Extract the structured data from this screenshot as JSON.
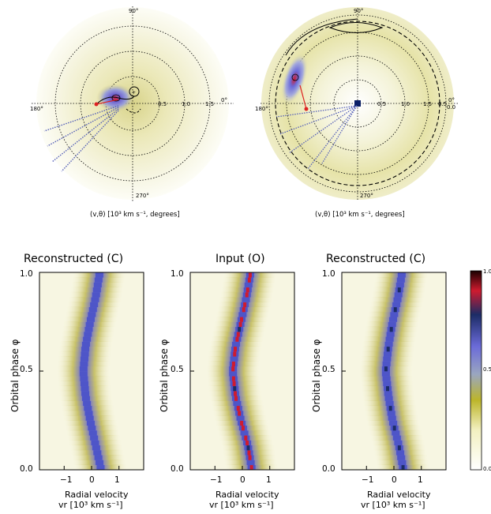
{
  "doppler_maps": {
    "left": {
      "caption": "(v,θ) [10³ km s⁻¹, degrees]",
      "angle_labels": {
        "top": "90°",
        "right": "0°",
        "left": "180°",
        "bottom": "270°"
      },
      "ring_labels": [
        "0.5",
        "1.0",
        "1.5"
      ]
    },
    "right": {
      "caption": "(v,θ) [10³ km s⁻¹, degrees]",
      "angle_labels": {
        "top": "90°",
        "right": "0°",
        "left": "180°",
        "bottom": "270°"
      },
      "ring_labels": [
        "0.5",
        "1.0",
        "1.5",
        "0.5",
        "0.0"
      ]
    }
  },
  "trailed": {
    "panels": [
      {
        "title": "Reconstructed (C)"
      },
      {
        "title": "Input (O)"
      },
      {
        "title": "Reconstructed (C)"
      }
    ],
    "ylabel": "Orbital phase φ",
    "xlabel_line1": "Radial velocity",
    "xlabel_line2": "vr [10³ km s⁻¹]",
    "yticks": [
      "0.0",
      "0.5",
      "1.0"
    ],
    "xticks": [
      "−1",
      "0",
      "1"
    ]
  },
  "colorbar": {
    "ticks": [
      "0.0",
      "0.5",
      "1.0"
    ],
    "colors": [
      "#ffffff",
      "#f2f0c0",
      "#bcb52a",
      "#8fa0c4",
      "#6b6bd9",
      "#1c2c66",
      "#cf1b2f",
      "#000000"
    ]
  },
  "chart_data": [
    {
      "type": "heatmap",
      "title": "Reconstructed (C)",
      "xlabel": "Radial velocity vr [10³ km s⁻¹]",
      "ylabel": "Orbital phase φ",
      "xlim": [
        -1.9,
        1.9
      ],
      "ylim": [
        0.0,
        1.0
      ],
      "phase": [
        0.0,
        0.125,
        0.25,
        0.375,
        0.5,
        0.625,
        0.75,
        0.875,
        1.0
      ],
      "peak_velocity": [
        0.35,
        0.15,
        -0.05,
        -0.22,
        -0.3,
        -0.22,
        -0.05,
        0.15,
        0.3
      ],
      "peak_intensity": 0.7
    },
    {
      "type": "heatmap",
      "title": "Input (O)",
      "xlabel": "Radial velocity vr [10³ km s⁻¹]",
      "ylabel": "Orbital phase φ",
      "xlim": [
        -1.9,
        1.9
      ],
      "ylim": [
        0.0,
        1.0
      ],
      "phase": [
        0.0,
        0.125,
        0.25,
        0.375,
        0.5,
        0.625,
        0.75,
        0.875,
        1.0
      ],
      "peak_velocity": [
        0.35,
        0.2,
        -0.05,
        -0.25,
        -0.35,
        -0.25,
        -0.05,
        0.15,
        0.3
      ],
      "peak_intensity": 1.0
    },
    {
      "type": "heatmap",
      "title": "Reconstructed (C)",
      "xlabel": "Radial velocity vr [10³ km s⁻¹]",
      "ylabel": "Orbital phase φ",
      "xlim": [
        -1.9,
        1.9
      ],
      "ylim": [
        0.0,
        1.0
      ],
      "phase": [
        0.0,
        0.125,
        0.25,
        0.375,
        0.5,
        0.625,
        0.75,
        0.875,
        1.0
      ],
      "peak_velocity": [
        0.35,
        0.18,
        -0.05,
        -0.2,
        -0.3,
        -0.2,
        -0.05,
        0.15,
        0.3
      ],
      "peak_intensity": 0.85
    }
  ]
}
